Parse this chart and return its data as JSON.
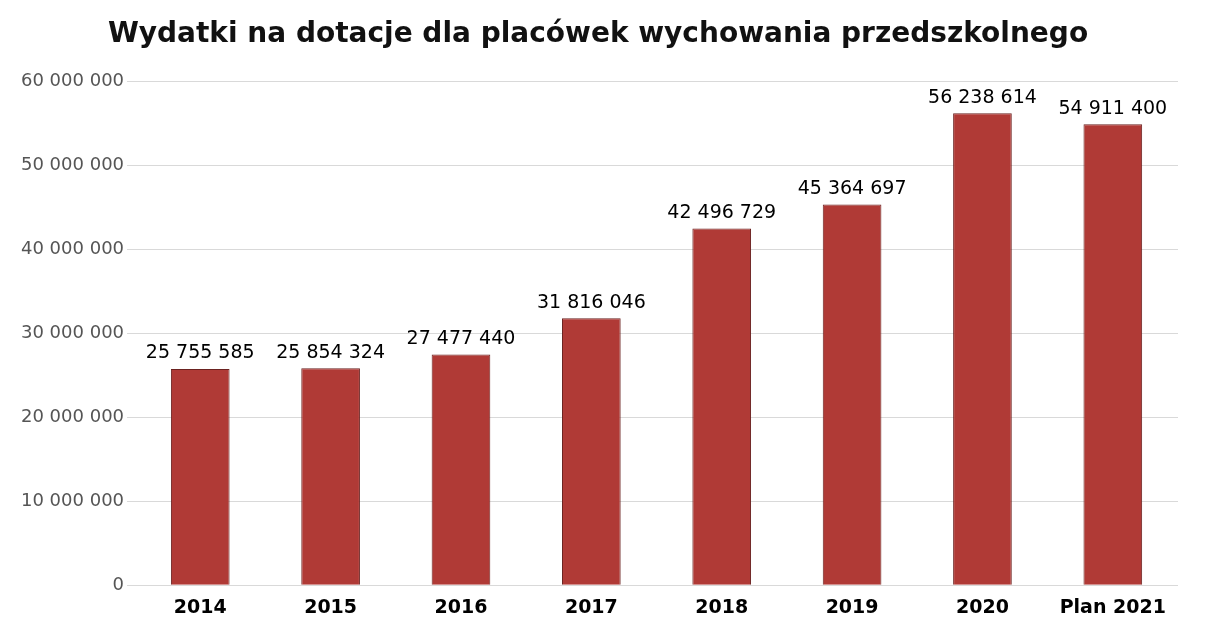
{
  "chart_data": {
    "type": "bar",
    "title": "Wydatki na dotacje dla placówek wychowania przedszkolnego",
    "categories": [
      "2014",
      "2015",
      "2016",
      "2017",
      "2018",
      "2019",
      "2020",
      "Plan 2021"
    ],
    "values": [
      25755585,
      25854324,
      27477440,
      31816046,
      42496729,
      45364697,
      56238614,
      54911400
    ],
    "value_labels": [
      "25 755 585",
      "25 854 324",
      "27 477 440",
      "31 816 046",
      "42 496 729",
      "45 364 697",
      "56 238 614",
      "54 911 400"
    ],
    "color": "#b03a36",
    "ylim": [
      0,
      60000000
    ],
    "yticks": [
      0,
      {
        "value": 10000000,
        "label": "10 000 000"
      },
      {
        "value": 20000000,
        "label": "20 000 000"
      },
      {
        "value": 30000000,
        "label": "30 000 000"
      },
      {
        "value": 40000000,
        "label": "40 000 000"
      },
      {
        "value": 50000000,
        "label": "50 000 000"
      },
      {
        "value": 60000000,
        "label": "60 000 000"
      }
    ],
    "grid": "y",
    "legend": false
  }
}
